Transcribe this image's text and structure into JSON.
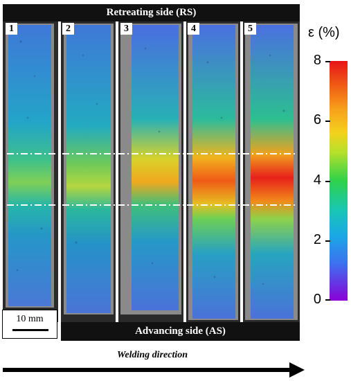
{
  "figure": {
    "top_label": "Retreating side (RS)",
    "bottom_label": "Advancing side (AS)",
    "specimen_labels": [
      "1",
      "2",
      "3",
      "4",
      "5"
    ],
    "colorbar": {
      "title": "ε (%)",
      "ticks": [
        "0",
        "2",
        "4",
        "6",
        "8"
      ],
      "range": [
        0,
        8
      ],
      "colors": [
        "#8a00d8",
        "#3f6ef0",
        "#1aa8e6",
        "#18c7b3",
        "#2ed24a",
        "#b7e02a",
        "#f3d21c",
        "#f7a01a",
        "#f05a14",
        "#e8141a"
      ]
    },
    "scale_bar": "10 mm",
    "direction_label": "Welding direction"
  }
}
